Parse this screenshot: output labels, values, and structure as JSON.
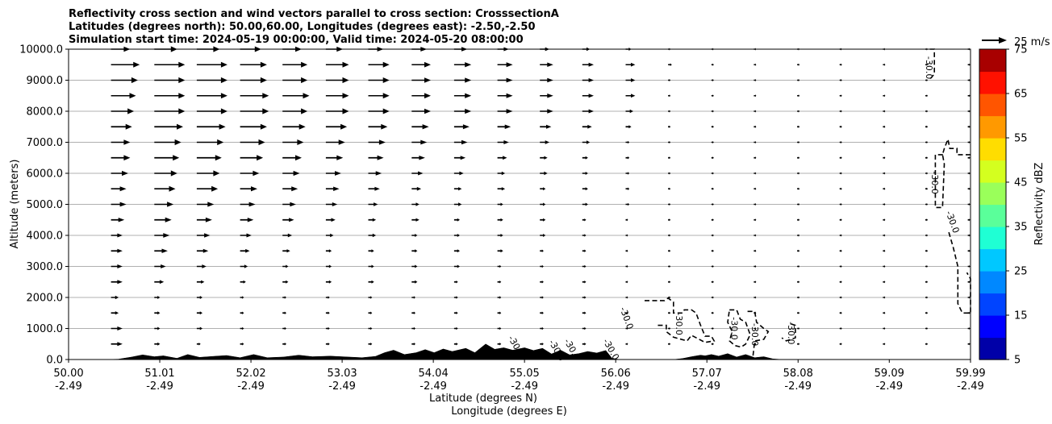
{
  "chart_data": {
    "type": "cross-section",
    "title_lines": [
      "Reflectivity cross section and wind vectors parallel to cross section: CrosssectionA",
      "Latitudes (degrees north): 50.00,60.00, Longitudes (degrees east): -2.50,-2.50",
      "Simulation start time: 2024-05-19 00:00:00, Valid time: 2024-05-20 08:00:00"
    ],
    "xlabel_lat": "Latitude (degrees N)",
    "xlabel_lon": "Longitude (degrees E)",
    "ylabel": "Altitude (meters)",
    "xlim": [
      50.0,
      59.99
    ],
    "ylim": [
      0,
      10000
    ],
    "x_ticks": [
      {
        "lat": "50.00",
        "lon": "-2.49",
        "value": 50.0
      },
      {
        "lat": "51.01",
        "lon": "-2.49",
        "value": 51.01
      },
      {
        "lat": "52.02",
        "lon": "-2.49",
        "value": 52.02
      },
      {
        "lat": "53.03",
        "lon": "-2.49",
        "value": 53.03
      },
      {
        "lat": "54.04",
        "lon": "-2.49",
        "value": 54.04
      },
      {
        "lat": "55.05",
        "lon": "-2.49",
        "value": 55.05
      },
      {
        "lat": "56.06",
        "lon": "-2.49",
        "value": 56.06
      },
      {
        "lat": "57.07",
        "lon": "-2.49",
        "value": 57.07
      },
      {
        "lat": "58.08",
        "lon": "-2.49",
        "value": 58.08
      },
      {
        "lat": "59.09",
        "lon": "-2.49",
        "value": 59.09
      },
      {
        "lat": "59.99",
        "lon": "-2.49",
        "value": 59.99
      }
    ],
    "y_ticks": [
      "0.0",
      "1000.0",
      "2000.0",
      "3000.0",
      "4000.0",
      "5000.0",
      "6000.0",
      "7000.0",
      "8000.0",
      "9000.0",
      "10000.0"
    ],
    "y_tick_values": [
      0,
      1000,
      2000,
      3000,
      4000,
      5000,
      6000,
      7000,
      8000,
      9000,
      10000
    ],
    "grid": "horizontal",
    "quiver_key": {
      "label": "25 m/s",
      "speed": 25
    },
    "colorbar": {
      "label": "Reflectivity dBZ",
      "range": [
        5,
        75
      ],
      "ticks": [
        "5",
        "15",
        "25",
        "35",
        "45",
        "55",
        "65",
        "75"
      ],
      "tick_values": [
        5,
        15,
        25,
        35,
        45,
        55,
        65,
        75
      ],
      "colors": [
        "#0000a8",
        "#0000ff",
        "#0044ff",
        "#0088ff",
        "#00c8ff",
        "#1fffd4",
        "#5aff9a",
        "#9aff5a",
        "#d4ff1f",
        "#ffdd00",
        "#ff9900",
        "#ff5500",
        "#ff1100",
        "#a80000"
      ]
    },
    "wind": {
      "lats": [
        50.0,
        50.47,
        50.95,
        51.42,
        51.9,
        52.37,
        52.85,
        53.32,
        53.8,
        54.27,
        54.75,
        55.22,
        55.69,
        56.17,
        56.64,
        57.12,
        57.59,
        58.07,
        58.54,
        59.02,
        59.49,
        59.96
      ],
      "alts": [
        500,
        1000,
        1500,
        2000,
        2500,
        3000,
        3500,
        4000,
        4500,
        5000,
        5500,
        6000,
        6500,
        7000,
        7500,
        8000,
        8500,
        9000,
        9500,
        10000
      ],
      "speeds_by_level": [
        [
          0,
          6,
          3,
          2,
          2,
          2,
          2,
          2,
          2,
          2,
          2,
          2,
          2,
          1,
          1,
          1,
          1,
          1,
          1,
          1,
          1,
          1
        ],
        [
          0,
          6,
          3,
          3,
          2,
          2,
          2,
          2,
          2,
          2,
          2,
          2,
          2,
          1,
          1,
          1,
          1,
          1,
          1,
          1,
          1,
          1
        ],
        [
          0,
          4,
          3,
          3,
          2,
          2,
          2,
          2,
          2,
          2,
          2,
          2,
          2,
          1,
          1,
          1,
          1,
          1,
          1,
          1,
          1,
          1
        ],
        [
          0,
          4,
          3,
          3,
          2,
          2,
          2,
          2,
          2,
          2,
          2,
          2,
          2,
          1,
          1,
          1,
          1,
          1,
          1,
          1,
          1,
          1
        ],
        [
          0,
          6,
          5,
          4,
          3,
          3,
          3,
          3,
          3,
          2,
          2,
          2,
          2,
          1,
          1,
          1,
          1,
          1,
          1,
          1,
          1,
          1
        ],
        [
          0,
          6,
          6,
          5,
          4,
          3,
          3,
          3,
          3,
          3,
          2,
          2,
          2,
          1,
          1,
          1,
          1,
          1,
          1,
          1,
          1,
          1
        ],
        [
          0,
          6,
          7,
          6,
          5,
          4,
          3,
          3,
          3,
          3,
          3,
          2,
          2,
          1,
          1,
          1,
          1,
          1,
          1,
          1,
          1,
          1
        ],
        [
          0,
          6,
          8,
          7,
          6,
          5,
          4,
          4,
          3,
          3,
          3,
          3,
          2,
          1,
          1,
          1,
          1,
          1,
          1,
          1,
          1,
          1
        ],
        [
          0,
          7,
          9,
          8,
          7,
          6,
          5,
          4,
          4,
          3,
          3,
          3,
          2,
          1,
          1,
          1,
          1,
          1,
          1,
          1,
          1,
          1
        ],
        [
          0,
          8,
          10,
          9,
          8,
          7,
          6,
          5,
          4,
          4,
          3,
          3,
          3,
          2,
          1,
          1,
          1,
          1,
          1,
          1,
          1,
          1
        ],
        [
          0,
          8,
          11,
          11,
          9,
          8,
          7,
          6,
          5,
          4,
          4,
          3,
          3,
          2,
          1,
          1,
          1,
          1,
          1,
          1,
          1,
          1
        ],
        [
          0,
          9,
          12,
          12,
          10,
          9,
          8,
          7,
          6,
          5,
          4,
          4,
          3,
          2,
          1,
          1,
          1,
          1,
          1,
          1,
          1,
          1
        ],
        [
          0,
          10,
          13,
          13,
          12,
          10,
          9,
          8,
          7,
          6,
          5,
          4,
          3,
          2,
          1,
          1,
          1,
          1,
          1,
          1,
          1,
          1
        ],
        [
          0,
          10,
          14,
          14,
          13,
          11,
          10,
          9,
          8,
          7,
          6,
          5,
          4,
          2,
          1,
          1,
          1,
          1,
          1,
          1,
          1,
          1
        ],
        [
          0,
          11,
          15,
          15,
          14,
          12,
          11,
          10,
          9,
          8,
          7,
          6,
          5,
          3,
          1,
          1,
          1,
          1,
          1,
          1,
          1,
          1
        ],
        [
          0,
          12,
          16,
          16,
          15,
          13,
          12,
          11,
          10,
          9,
          8,
          7,
          6,
          4,
          1,
          1,
          1,
          1,
          1,
          1,
          1,
          1
        ],
        [
          0,
          13,
          16,
          16,
          15,
          14,
          12,
          11,
          10,
          9,
          8,
          7,
          6,
          5,
          1,
          1,
          1,
          1,
          1,
          1,
          1,
          1
        ],
        [
          0,
          14,
          16,
          16,
          14,
          13,
          12,
          11,
          10,
          9,
          8,
          7,
          6,
          5,
          1,
          1,
          1,
          1,
          1,
          1,
          1,
          1
        ],
        [
          0,
          15,
          16,
          16,
          14,
          13,
          12,
          11,
          10,
          9,
          8,
          7,
          6,
          5,
          2,
          1,
          1,
          1,
          1,
          1,
          1,
          1
        ],
        [
          0,
          10,
          12,
          12,
          11,
          10,
          9,
          8,
          8,
          7,
          6,
          5,
          4,
          3,
          1,
          1,
          1,
          1,
          1,
          1,
          1,
          1
        ]
      ]
    },
    "terrain": [
      [
        50.0,
        0
      ],
      [
        50.4,
        0
      ],
      [
        50.55,
        10
      ],
      [
        50.7,
        80
      ],
      [
        50.82,
        150
      ],
      [
        50.95,
        90
      ],
      [
        51.05,
        120
      ],
      [
        51.2,
        40
      ],
      [
        51.32,
        160
      ],
      [
        51.45,
        70
      ],
      [
        51.6,
        100
      ],
      [
        51.75,
        130
      ],
      [
        51.9,
        60
      ],
      [
        52.05,
        160
      ],
      [
        52.2,
        60
      ],
      [
        52.38,
        80
      ],
      [
        52.55,
        140
      ],
      [
        52.7,
        90
      ],
      [
        52.9,
        110
      ],
      [
        53.1,
        80
      ],
      [
        53.25,
        60
      ],
      [
        53.4,
        100
      ],
      [
        53.5,
        220
      ],
      [
        53.6,
        300
      ],
      [
        53.72,
        160
      ],
      [
        53.85,
        220
      ],
      [
        53.95,
        320
      ],
      [
        54.05,
        220
      ],
      [
        54.15,
        340
      ],
      [
        54.25,
        260
      ],
      [
        54.4,
        360
      ],
      [
        54.5,
        220
      ],
      [
        54.62,
        500
      ],
      [
        54.72,
        330
      ],
      [
        54.82,
        380
      ],
      [
        54.92,
        300
      ],
      [
        55.05,
        380
      ],
      [
        55.15,
        290
      ],
      [
        55.25,
        360
      ],
      [
        55.35,
        180
      ],
      [
        55.45,
        300
      ],
      [
        55.55,
        150
      ],
      [
        55.65,
        190
      ],
      [
        55.75,
        260
      ],
      [
        55.85,
        210
      ],
      [
        55.95,
        290
      ],
      [
        56.02,
        40
      ],
      [
        56.1,
        0
      ],
      [
        56.7,
        0
      ],
      [
        56.8,
        30
      ],
      [
        56.9,
        90
      ],
      [
        57.0,
        140
      ],
      [
        57.05,
        120
      ],
      [
        57.12,
        160
      ],
      [
        57.2,
        110
      ],
      [
        57.3,
        190
      ],
      [
        57.4,
        80
      ],
      [
        57.5,
        160
      ],
      [
        57.6,
        60
      ],
      [
        57.7,
        90
      ],
      [
        57.8,
        20
      ],
      [
        57.9,
        0
      ],
      [
        59.99,
        0
      ]
    ],
    "contour_level": "-30.0",
    "contours": [
      [
        [
          56.38,
          1900
        ],
        [
          56.6,
          1900
        ],
        [
          56.64,
          1980
        ],
        [
          56.7,
          1850
        ],
        [
          56.7,
          1500
        ],
        [
          56.8,
          1500
        ],
        [
          56.82,
          1600
        ],
        [
          56.9,
          1600
        ],
        [
          56.95,
          1500
        ],
        [
          57.0,
          1100
        ],
        [
          57.05,
          750
        ],
        [
          57.12,
          750
        ],
        [
          57.15,
          600
        ],
        [
          57.05,
          550
        ],
        [
          56.9,
          780
        ],
        [
          56.85,
          600
        ],
        [
          56.7,
          720
        ],
        [
          56.62,
          900
        ],
        [
          56.62,
          1100
        ],
        [
          56.52,
          1100
        ]
      ],
      [
        [
          57.32,
          1600
        ],
        [
          57.4,
          1600
        ],
        [
          57.44,
          1300
        ],
        [
          57.5,
          1200
        ],
        [
          57.55,
          800
        ],
        [
          57.5,
          500
        ],
        [
          57.45,
          400
        ],
        [
          57.38,
          450
        ],
        [
          57.32,
          600
        ],
        [
          57.35,
          900
        ],
        [
          57.3,
          1200
        ],
        [
          57.32,
          1600
        ]
      ],
      [
        [
          57.52,
          1550
        ],
        [
          57.6,
          1550
        ],
        [
          57.62,
          1200
        ],
        [
          57.7,
          1000
        ],
        [
          57.75,
          900
        ],
        [
          57.7,
          650
        ],
        [
          57.6,
          600
        ],
        [
          57.58,
          100
        ],
        [
          57.55,
          0
        ]
      ],
      [
        [
          58.0,
          1150
        ],
        [
          58.05,
          1100
        ],
        [
          58.05,
          700
        ],
        [
          58.0,
          650
        ],
        [
          57.95,
          600
        ],
        [
          57.9,
          700
        ]
      ],
      [
        [
          59.54,
          10000
        ],
        [
          59.59,
          10000
        ],
        [
          59.59,
          9200
        ],
        [
          59.53,
          9000
        ]
      ],
      [
        [
          59.99,
          6600
        ],
        [
          59.84,
          6600
        ],
        [
          59.84,
          6800
        ],
        [
          59.76,
          6800
        ],
        [
          59.74,
          7100
        ],
        [
          59.7,
          6800
        ],
        [
          59.68,
          6600
        ],
        [
          59.7,
          6300
        ],
        [
          59.68,
          4900
        ],
        [
          59.6,
          4900
        ],
        [
          59.6,
          6600
        ],
        [
          59.69,
          6600
        ]
      ],
      [
        [
          59.75,
          4100
        ],
        [
          59.8,
          3600
        ],
        [
          59.85,
          3000
        ],
        [
          59.85,
          1800
        ],
        [
          59.9,
          1500
        ],
        [
          59.99,
          1500
        ],
        [
          59.99,
          2600
        ],
        [
          59.95,
          2800
        ]
      ]
    ],
    "contour_labels": [
      {
        "lat": 56.15,
        "alt": 1300,
        "rot": 70
      },
      {
        "lat": 56.73,
        "alt": 1150,
        "rot": 90
      },
      {
        "lat": 57.34,
        "alt": 1000,
        "rot": 90
      },
      {
        "lat": 57.57,
        "alt": 800,
        "rot": 90
      },
      {
        "lat": 57.97,
        "alt": 850,
        "rot": 90
      },
      {
        "lat": 59.5,
        "alt": 9400,
        "rot": 90
      },
      {
        "lat": 59.56,
        "alt": 5700,
        "rot": 90
      },
      {
        "lat": 59.76,
        "alt": 4400,
        "rot": 70
      },
      {
        "lat": 54.93,
        "alt": 380,
        "rot": 60
      },
      {
        "lat": 55.38,
        "alt": 250,
        "rot": 60
      },
      {
        "lat": 55.55,
        "alt": 280,
        "rot": 60
      },
      {
        "lat": 55.98,
        "alt": 280,
        "rot": 60
      }
    ]
  }
}
